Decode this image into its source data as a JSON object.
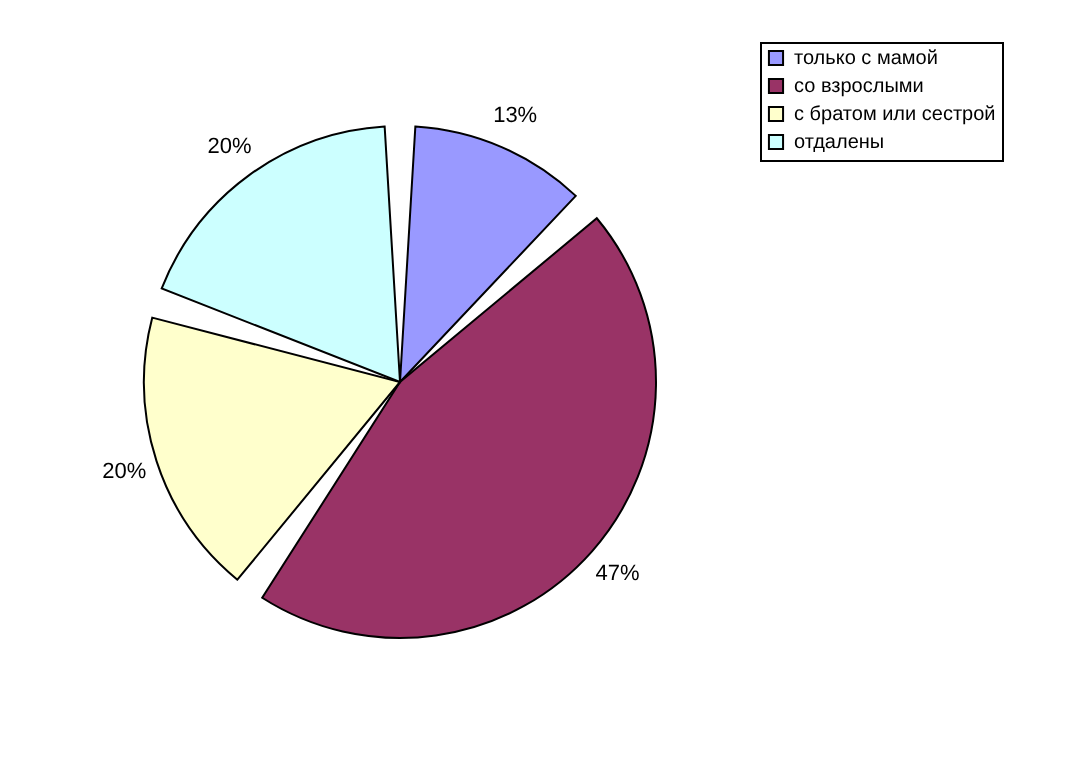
{
  "chart_data": {
    "type": "pie",
    "categories": [
      "только с мамой",
      "со взрослыми",
      "с братом или сестрой",
      "отдалены"
    ],
    "values": [
      13,
      47,
      20,
      20
    ],
    "colors": [
      "#9999ff",
      "#993366",
      "#ffffcc",
      "#ccffff"
    ],
    "value_labels": [
      "13%",
      "47%",
      "20%",
      "20%"
    ],
    "legend": "right"
  }
}
